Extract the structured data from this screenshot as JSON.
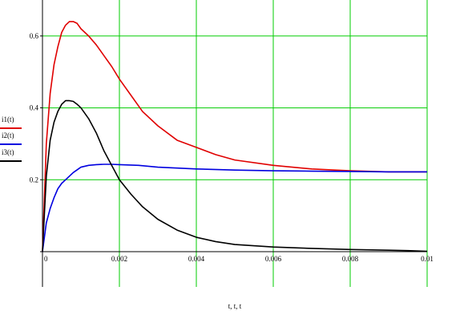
{
  "chart_data": {
    "type": "line",
    "xlabel": "t, t, t",
    "ylabel": "",
    "xlim": [
      0,
      0.01
    ],
    "ylim": [
      0,
      0.7
    ],
    "x_ticks": [
      0,
      0.002,
      0.004,
      0.006,
      0.008,
      0.01
    ],
    "x_tick_labels": [
      "0",
      "0.002",
      "0.004",
      "0.006",
      "0.008",
      "0.01"
    ],
    "y_ticks": [
      0.2,
      0.4,
      0.6
    ],
    "y_tick_labels": [
      "0.2",
      "0.4",
      "0.6"
    ],
    "grid": true,
    "grid_color": "#00cc00",
    "legend_position": "left",
    "series": [
      {
        "name": "i1(t)",
        "color": "#e00000",
        "x": [
          0,
          0.0001,
          0.0002,
          0.0003,
          0.0004,
          0.0005,
          0.0006,
          0.0007,
          0.0008,
          0.0009,
          0.001,
          0.0012,
          0.0014,
          0.0016,
          0.0018,
          0.002,
          0.0023,
          0.0026,
          0.003,
          0.0035,
          0.004,
          0.0045,
          0.005,
          0.006,
          0.007,
          0.008,
          0.009,
          0.01
        ],
        "y": [
          0,
          0.3,
          0.44,
          0.52,
          0.57,
          0.61,
          0.63,
          0.64,
          0.64,
          0.635,
          0.62,
          0.6,
          0.575,
          0.545,
          0.515,
          0.48,
          0.435,
          0.39,
          0.35,
          0.31,
          0.29,
          0.27,
          0.255,
          0.24,
          0.23,
          0.225,
          0.222,
          0.222
        ]
      },
      {
        "name": "i2(t)",
        "color": "#0000e0",
        "x": [
          0,
          0.0001,
          0.0002,
          0.0003,
          0.0004,
          0.0005,
          0.0006,
          0.0007,
          0.0008,
          0.001,
          0.0012,
          0.0014,
          0.0016,
          0.0018,
          0.002,
          0.0025,
          0.003,
          0.004,
          0.005,
          0.006,
          0.007,
          0.008,
          0.009,
          0.01
        ],
        "y": [
          0,
          0.08,
          0.12,
          0.15,
          0.175,
          0.19,
          0.2,
          0.21,
          0.22,
          0.235,
          0.24,
          0.242,
          0.243,
          0.243,
          0.242,
          0.24,
          0.235,
          0.23,
          0.227,
          0.225,
          0.224,
          0.223,
          0.222,
          0.222
        ]
      },
      {
        "name": "i3(t)",
        "color": "#000000",
        "x": [
          0,
          0.0001,
          0.0002,
          0.0003,
          0.0004,
          0.0005,
          0.0006,
          0.0007,
          0.0008,
          0.0009,
          0.001,
          0.0012,
          0.0014,
          0.0016,
          0.0018,
          0.002,
          0.0023,
          0.0026,
          0.003,
          0.0035,
          0.004,
          0.0045,
          0.005,
          0.006,
          0.007,
          0.008,
          0.009,
          0.0095,
          0.01
        ],
        "y": [
          0,
          0.21,
          0.31,
          0.36,
          0.39,
          0.41,
          0.42,
          0.42,
          0.418,
          0.41,
          0.4,
          0.37,
          0.33,
          0.28,
          0.24,
          0.2,
          0.16,
          0.125,
          0.09,
          0.06,
          0.04,
          0.028,
          0.02,
          0.013,
          0.009,
          0.006,
          0.004,
          0.003,
          0.001
        ]
      }
    ]
  }
}
